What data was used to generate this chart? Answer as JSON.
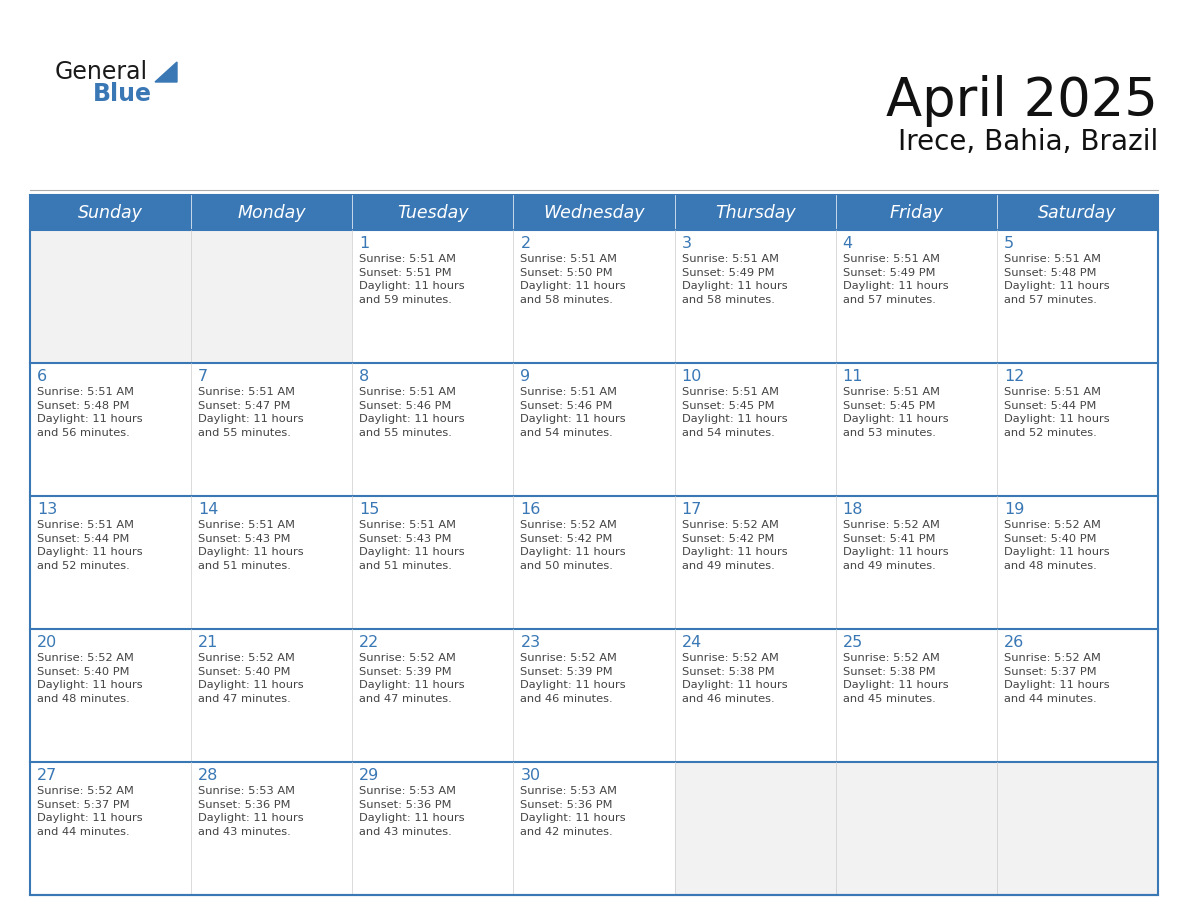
{
  "title": "April 2025",
  "subtitle": "Irece, Bahia, Brazil",
  "header_color": "#3A78B5",
  "header_text_color": "#FFFFFF",
  "cell_bg_white": "#FFFFFF",
  "cell_bg_gray": "#F2F2F2",
  "cell_border_color": "#3A78B5",
  "row_border_color": "#7BAFD4",
  "day_number_color": "#3A78B5",
  "cell_text_color": "#444444",
  "page_bg": "#FFFFFF",
  "days_of_week": [
    "Sunday",
    "Monday",
    "Tuesday",
    "Wednesday",
    "Thursday",
    "Friday",
    "Saturday"
  ],
  "weeks": [
    [
      {
        "day": "",
        "info": ""
      },
      {
        "day": "",
        "info": ""
      },
      {
        "day": "1",
        "info": "Sunrise: 5:51 AM\nSunset: 5:51 PM\nDaylight: 11 hours\nand 59 minutes."
      },
      {
        "day": "2",
        "info": "Sunrise: 5:51 AM\nSunset: 5:50 PM\nDaylight: 11 hours\nand 58 minutes."
      },
      {
        "day": "3",
        "info": "Sunrise: 5:51 AM\nSunset: 5:49 PM\nDaylight: 11 hours\nand 58 minutes."
      },
      {
        "day": "4",
        "info": "Sunrise: 5:51 AM\nSunset: 5:49 PM\nDaylight: 11 hours\nand 57 minutes."
      },
      {
        "day": "5",
        "info": "Sunrise: 5:51 AM\nSunset: 5:48 PM\nDaylight: 11 hours\nand 57 minutes."
      }
    ],
    [
      {
        "day": "6",
        "info": "Sunrise: 5:51 AM\nSunset: 5:48 PM\nDaylight: 11 hours\nand 56 minutes."
      },
      {
        "day": "7",
        "info": "Sunrise: 5:51 AM\nSunset: 5:47 PM\nDaylight: 11 hours\nand 55 minutes."
      },
      {
        "day": "8",
        "info": "Sunrise: 5:51 AM\nSunset: 5:46 PM\nDaylight: 11 hours\nand 55 minutes."
      },
      {
        "day": "9",
        "info": "Sunrise: 5:51 AM\nSunset: 5:46 PM\nDaylight: 11 hours\nand 54 minutes."
      },
      {
        "day": "10",
        "info": "Sunrise: 5:51 AM\nSunset: 5:45 PM\nDaylight: 11 hours\nand 54 minutes."
      },
      {
        "day": "11",
        "info": "Sunrise: 5:51 AM\nSunset: 5:45 PM\nDaylight: 11 hours\nand 53 minutes."
      },
      {
        "day": "12",
        "info": "Sunrise: 5:51 AM\nSunset: 5:44 PM\nDaylight: 11 hours\nand 52 minutes."
      }
    ],
    [
      {
        "day": "13",
        "info": "Sunrise: 5:51 AM\nSunset: 5:44 PM\nDaylight: 11 hours\nand 52 minutes."
      },
      {
        "day": "14",
        "info": "Sunrise: 5:51 AM\nSunset: 5:43 PM\nDaylight: 11 hours\nand 51 minutes."
      },
      {
        "day": "15",
        "info": "Sunrise: 5:51 AM\nSunset: 5:43 PM\nDaylight: 11 hours\nand 51 minutes."
      },
      {
        "day": "16",
        "info": "Sunrise: 5:52 AM\nSunset: 5:42 PM\nDaylight: 11 hours\nand 50 minutes."
      },
      {
        "day": "17",
        "info": "Sunrise: 5:52 AM\nSunset: 5:42 PM\nDaylight: 11 hours\nand 49 minutes."
      },
      {
        "day": "18",
        "info": "Sunrise: 5:52 AM\nSunset: 5:41 PM\nDaylight: 11 hours\nand 49 minutes."
      },
      {
        "day": "19",
        "info": "Sunrise: 5:52 AM\nSunset: 5:40 PM\nDaylight: 11 hours\nand 48 minutes."
      }
    ],
    [
      {
        "day": "20",
        "info": "Sunrise: 5:52 AM\nSunset: 5:40 PM\nDaylight: 11 hours\nand 48 minutes."
      },
      {
        "day": "21",
        "info": "Sunrise: 5:52 AM\nSunset: 5:40 PM\nDaylight: 11 hours\nand 47 minutes."
      },
      {
        "day": "22",
        "info": "Sunrise: 5:52 AM\nSunset: 5:39 PM\nDaylight: 11 hours\nand 47 minutes."
      },
      {
        "day": "23",
        "info": "Sunrise: 5:52 AM\nSunset: 5:39 PM\nDaylight: 11 hours\nand 46 minutes."
      },
      {
        "day": "24",
        "info": "Sunrise: 5:52 AM\nSunset: 5:38 PM\nDaylight: 11 hours\nand 46 minutes."
      },
      {
        "day": "25",
        "info": "Sunrise: 5:52 AM\nSunset: 5:38 PM\nDaylight: 11 hours\nand 45 minutes."
      },
      {
        "day": "26",
        "info": "Sunrise: 5:52 AM\nSunset: 5:37 PM\nDaylight: 11 hours\nand 44 minutes."
      }
    ],
    [
      {
        "day": "27",
        "info": "Sunrise: 5:52 AM\nSunset: 5:37 PM\nDaylight: 11 hours\nand 44 minutes."
      },
      {
        "day": "28",
        "info": "Sunrise: 5:53 AM\nSunset: 5:36 PM\nDaylight: 11 hours\nand 43 minutes."
      },
      {
        "day": "29",
        "info": "Sunrise: 5:53 AM\nSunset: 5:36 PM\nDaylight: 11 hours\nand 43 minutes."
      },
      {
        "day": "30",
        "info": "Sunrise: 5:53 AM\nSunset: 5:36 PM\nDaylight: 11 hours\nand 42 minutes."
      },
      {
        "day": "",
        "info": ""
      },
      {
        "day": "",
        "info": ""
      },
      {
        "day": "",
        "info": ""
      }
    ]
  ],
  "logo_general_color": "#1a1a1a",
  "logo_blue_color": "#3A78B5",
  "title_fontsize": 38,
  "subtitle_fontsize": 20,
  "header_fontsize": 12.5,
  "day_number_fontsize": 11.5,
  "cell_text_fontsize": 8.2
}
